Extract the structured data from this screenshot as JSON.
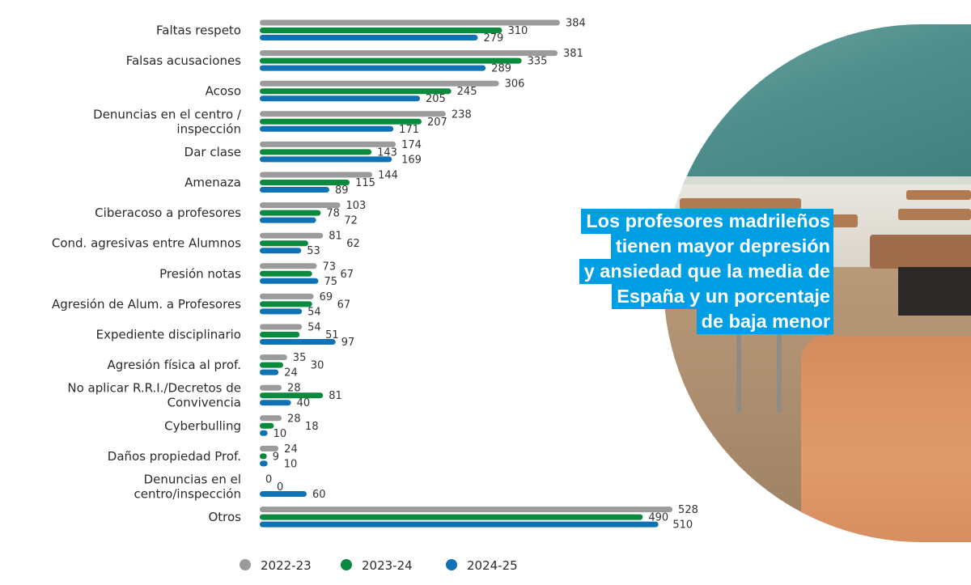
{
  "headline": {
    "lines": [
      "Los profesores madrileños",
      "tienen mayor depresión",
      "y ansiedad que la media de",
      "España y un porcentaje",
      "de baja menor"
    ],
    "background": "#009ee3",
    "text_color": "#ffffff"
  },
  "photo": {
    "description": "Empty classroom with green chalkboard and wooden desks"
  },
  "chart_data": {
    "type": "bar",
    "orientation": "horizontal",
    "title": "",
    "xlabel": "",
    "ylabel": "",
    "xlim": [
      0,
      560
    ],
    "grid": false,
    "legend_position": "bottom",
    "categories": [
      [
        "Faltas respeto"
      ],
      [
        "Falsas acusaciones"
      ],
      [
        "Acoso"
      ],
      [
        "Denuncias en el centro /",
        "inspección"
      ],
      [
        "Dar clase"
      ],
      [
        "Amenaza"
      ],
      [
        "Ciberacoso a profesores"
      ],
      [
        "Cond. agresivas entre Alumnos"
      ],
      [
        "Presión notas"
      ],
      [
        "Agresión de Alum. a Profesores"
      ],
      [
        "Expediente disciplinario"
      ],
      [
        "Agresión física al prof."
      ],
      [
        "No aplicar R.R.I./Decretos de",
        "Convivencia"
      ],
      [
        "Cyberbulling"
      ],
      [
        "Daños propiedad Prof."
      ],
      [
        "Denuncias en el",
        "centro/inspección"
      ],
      [
        "Otros"
      ]
    ],
    "series": [
      {
        "name": "2022-23",
        "color": "#9b9b9b",
        "values": [
          384,
          381,
          306,
          238,
          174,
          144,
          103,
          81,
          73,
          69,
          54,
          35,
          28,
          28,
          24,
          0,
          528
        ]
      },
      {
        "name": "2023-24",
        "color": "#0a8a3c",
        "values": [
          310,
          335,
          245,
          207,
          143,
          115,
          78,
          62,
          67,
          67,
          51,
          30,
          81,
          18,
          9,
          0,
          490
        ]
      },
      {
        "name": "2024-25",
        "color": "#0e72b5",
        "values": [
          279,
          289,
          205,
          171,
          169,
          89,
          72,
          53,
          75,
          54,
          97,
          24,
          40,
          10,
          10,
          60,
          510
        ]
      }
    ]
  }
}
